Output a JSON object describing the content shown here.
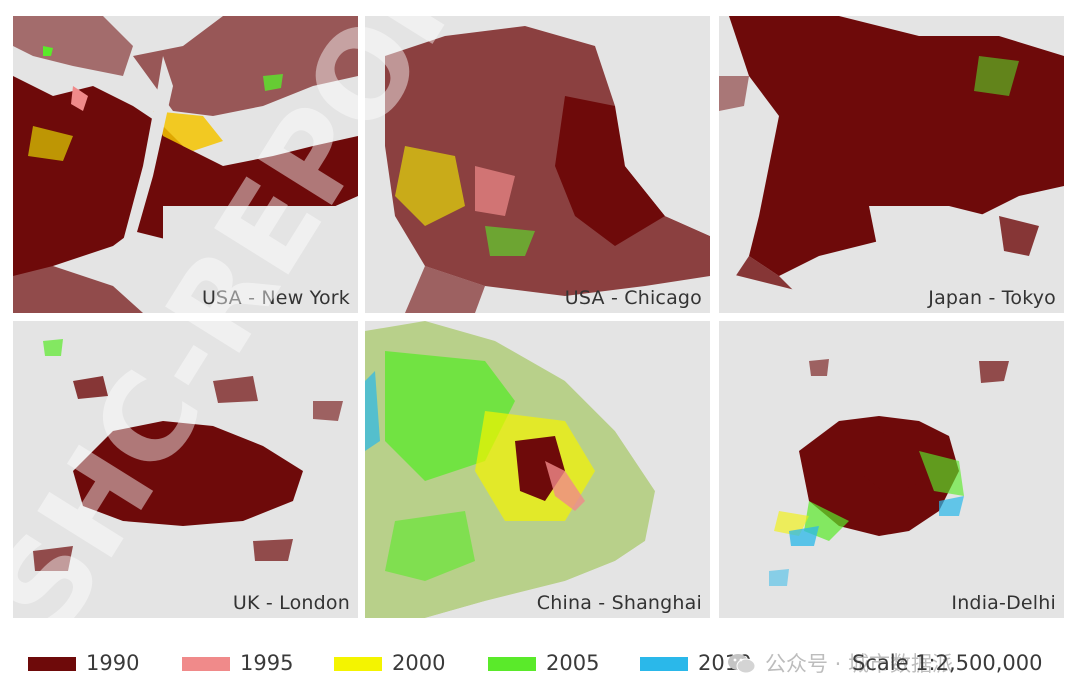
{
  "panels": [
    {
      "id": "new-york",
      "label": "USA - New York"
    },
    {
      "id": "chicago",
      "label": "USA - Chicago"
    },
    {
      "id": "tokyo",
      "label": "Japan - Tokyo"
    },
    {
      "id": "london",
      "label": "UK - London"
    },
    {
      "id": "shanghai",
      "label": "China - Shanghai"
    },
    {
      "id": "delhi",
      "label": "India-Delhi"
    }
  ],
  "legend": [
    {
      "year": "1990",
      "color": "#6e0a0a"
    },
    {
      "year": "1995",
      "color": "#f08a8a"
    },
    {
      "year": "2000",
      "color": "#f4f400"
    },
    {
      "year": "2005",
      "color": "#5aea2a"
    },
    {
      "year": "2010",
      "color": "#2ab8ea"
    }
  ],
  "scale": "Scale 1:2,500,000",
  "watermark": {
    "text": "公众号 · 城市数据派",
    "icon": "wechat-icon",
    "overlay_text": "SHC-REPORT"
  },
  "colors": {
    "background": "#e4e4e4",
    "water": "#e4e4e4"
  }
}
